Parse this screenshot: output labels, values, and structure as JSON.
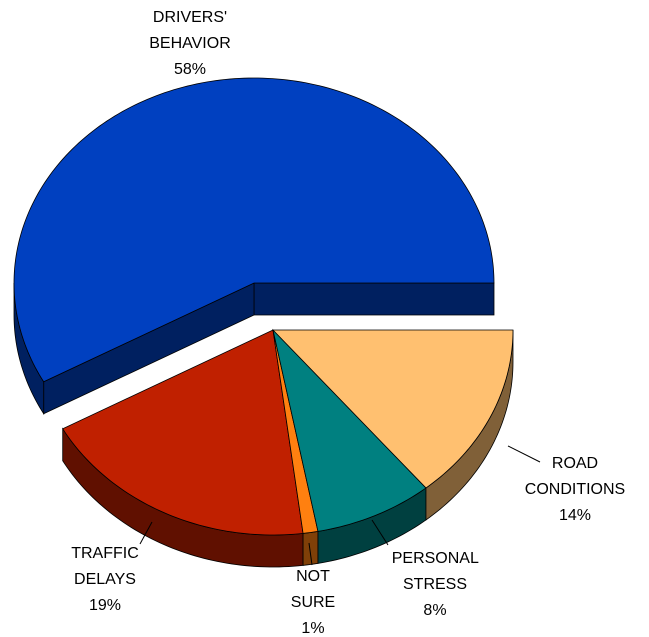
{
  "chart_data": {
    "type": "pie3d",
    "categories": [
      "DRIVERS' BEHAVIOR",
      "TRAFFIC DELAYS",
      "NOT SURE",
      "PERSONAL STRESS",
      "ROAD CONDITIONS"
    ],
    "values": [
      58,
      19,
      1,
      8,
      14
    ],
    "value_labels": [
      "58%",
      "19%",
      "1%",
      "8%",
      "14%"
    ],
    "colors": [
      "#0040c0",
      "#c02000",
      "#ff8010",
      "#008080",
      "#ffc070"
    ]
  }
}
